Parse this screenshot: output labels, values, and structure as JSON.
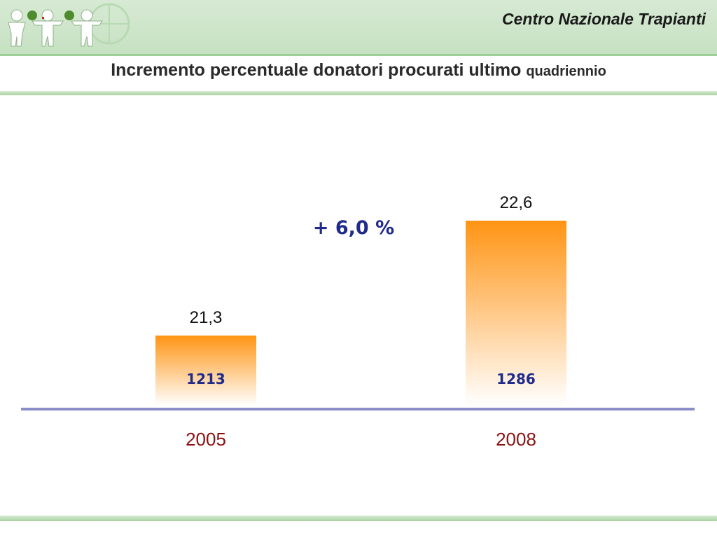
{
  "header": {
    "org_name": "Centro Nazionale Trapianti",
    "title_main": "Incremento percentuale donatori procurati ultimo ",
    "title_small": "quadriennio"
  },
  "colors": {
    "bar_top": "#ff9414",
    "bar_bottom": "#ffffff",
    "baseline": "#8a8ec8",
    "category_text": "#8b1212",
    "count_text": "#1f2a8a",
    "header_green": "#c6e1c2"
  },
  "chart_data": {
    "type": "bar",
    "title": "Incremento percentuale donatori procurati ultimo quadriennio",
    "categories": [
      "2005",
      "2008"
    ],
    "values": [
      21.3,
      22.6
    ],
    "value_labels": [
      "21,3",
      "22,6"
    ],
    "bar_inner_labels": [
      "1213",
      "1286"
    ],
    "annotation": "+ 6,0 %",
    "xlabel": "",
    "ylabel": "",
    "grid": false,
    "legend": "none"
  }
}
